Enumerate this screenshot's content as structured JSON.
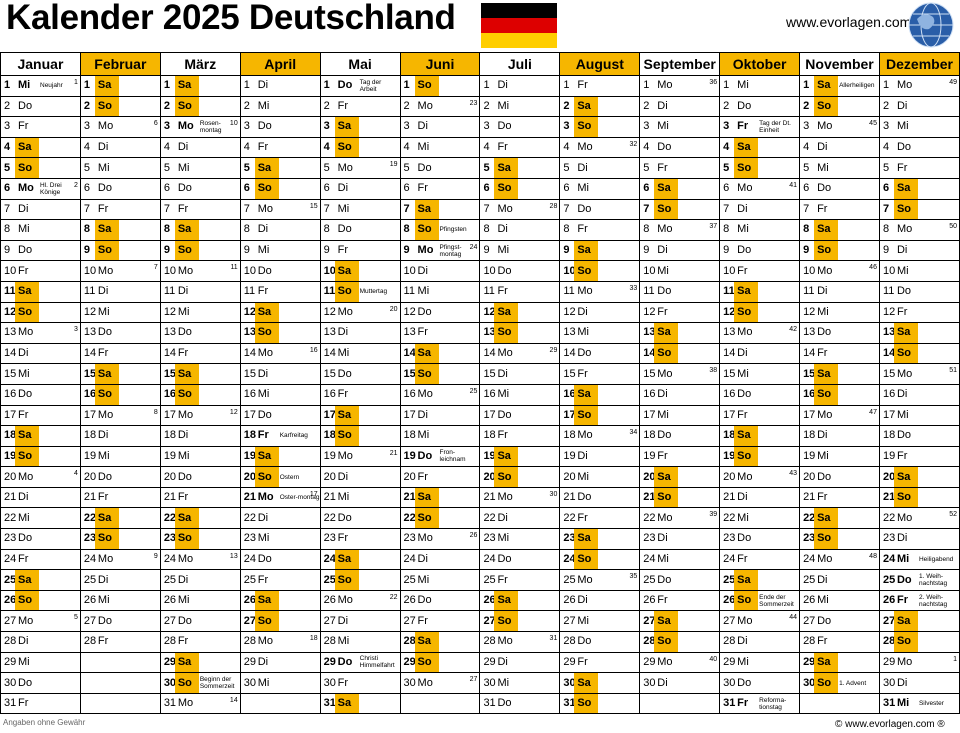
{
  "title": "Kalender 2025 Deutschland",
  "site": "www.evorlagen.com",
  "footer_left": "Angaben ohne Gewähr",
  "footer_right": "© www.evorlagen.com ®",
  "accent": "#f6b600",
  "flag_colors": [
    "#000000",
    "#dd0000",
    "#ffce00"
  ],
  "months": [
    {
      "name": "Januar",
      "hl": false
    },
    {
      "name": "Februar",
      "hl": true
    },
    {
      "name": "März",
      "hl": false
    },
    {
      "name": "April",
      "hl": true
    },
    {
      "name": "Mai",
      "hl": false
    },
    {
      "name": "Juni",
      "hl": true
    },
    {
      "name": "Juli",
      "hl": false
    },
    {
      "name": "August",
      "hl": true
    },
    {
      "name": "September",
      "hl": false
    },
    {
      "name": "Oktober",
      "hl": true
    },
    {
      "name": "November",
      "hl": false
    },
    {
      "name": "Dezember",
      "hl": true
    }
  ],
  "cells": [
    [
      "1|Mi|Neujahr|1",
      "1|Sa",
      "1|Sa",
      "1|Di",
      "1|Do|Tag der Arbeit",
      "1|So",
      "1|Di",
      "1|Fr",
      "1|Mo||36",
      "1|Mi",
      "1|Sa|Allerheiligen",
      "1|Mo||49"
    ],
    [
      "2|Do",
      "2|So",
      "2|So",
      "2|Mi",
      "2|Fr",
      "2|Mo||23",
      "2|Mi",
      "2|Sa",
      "2|Di",
      "2|Do",
      "2|So",
      "2|Di"
    ],
    [
      "3|Fr",
      "3|Mo||6",
      "3|Mo|Rosen-montag|10",
      "3|Do",
      "3|Sa",
      "3|Di",
      "3|Do",
      "3|So",
      "3|Mi",
      "3|Fr|Tag der Dt. Einheit",
      "3|Mo||45",
      "3|Mi"
    ],
    [
      "4|Sa",
      "4|Di",
      "4|Di",
      "4|Fr",
      "4|So",
      "4|Mi",
      "4|Fr",
      "4|Mo||32",
      "4|Do",
      "4|Sa",
      "4|Di",
      "4|Do"
    ],
    [
      "5|So",
      "5|Mi",
      "5|Mi",
      "5|Sa",
      "5|Mo||19",
      "5|Do",
      "5|Sa",
      "5|Di",
      "5|Fr",
      "5|So",
      "5|Mi",
      "5|Fr"
    ],
    [
      "6|Mo|Hl. Drei Könige|2",
      "6|Do",
      "6|Do",
      "6|So",
      "6|Di",
      "6|Fr",
      "6|So",
      "6|Mi",
      "6|Sa",
      "6|Mo||41",
      "6|Do",
      "6|Sa"
    ],
    [
      "7|Di",
      "7|Fr",
      "7|Fr",
      "7|Mo||15",
      "7|Mi",
      "7|Sa",
      "7|Mo||28",
      "7|Do",
      "7|So",
      "7|Di",
      "7|Fr",
      "7|So"
    ],
    [
      "8|Mi",
      "8|Sa",
      "8|Sa",
      "8|Di",
      "8|Do",
      "8|So|Pfingsten",
      "8|Di",
      "8|Fr",
      "8|Mo||37",
      "8|Mi",
      "8|Sa",
      "8|Mo||50"
    ],
    [
      "9|Do",
      "9|So",
      "9|So",
      "9|Mi",
      "9|Fr",
      "9|Mo|Pfingst-montag|24",
      "9|Mi",
      "9|Sa",
      "9|Di",
      "9|Do",
      "9|So",
      "9|Di"
    ],
    [
      "10|Fr",
      "10|Mo||7",
      "10|Mo||11",
      "10|Do",
      "10|Sa",
      "10|Di",
      "10|Do",
      "10|So",
      "10|Mi",
      "10|Fr",
      "10|Mo||46",
      "10|Mi"
    ],
    [
      "11|Sa",
      "11|Di",
      "11|Di",
      "11|Fr",
      "11|So|Muttertag",
      "11|Mi",
      "11|Fr",
      "11|Mo||33",
      "11|Do",
      "11|Sa",
      "11|Di",
      "11|Do"
    ],
    [
      "12|So",
      "12|Mi",
      "12|Mi",
      "12|Sa",
      "12|Mo||20",
      "12|Do",
      "12|Sa",
      "12|Di",
      "12|Fr",
      "12|So",
      "12|Mi",
      "12|Fr"
    ],
    [
      "13|Mo||3",
      "13|Do",
      "13|Do",
      "13|So",
      "13|Di",
      "13|Fr",
      "13|So",
      "13|Mi",
      "13|Sa",
      "13|Mo||42",
      "13|Do",
      "13|Sa"
    ],
    [
      "14|Di",
      "14|Fr",
      "14|Fr",
      "14|Mo||16",
      "14|Mi",
      "14|Sa",
      "14|Mo||29",
      "14|Do",
      "14|So",
      "14|Di",
      "14|Fr",
      "14|So"
    ],
    [
      "15|Mi",
      "15|Sa",
      "15|Sa",
      "15|Di",
      "15|Do",
      "15|So",
      "15|Di",
      "15|Fr",
      "15|Mo||38",
      "15|Mi",
      "15|Sa",
      "15|Mo||51"
    ],
    [
      "16|Do",
      "16|So",
      "16|So",
      "16|Mi",
      "16|Fr",
      "16|Mo||25",
      "16|Mi",
      "16|Sa",
      "16|Di",
      "16|Do",
      "16|So",
      "16|Di"
    ],
    [
      "17|Fr",
      "17|Mo||8",
      "17|Mo||12",
      "17|Do",
      "17|Sa",
      "17|Di",
      "17|Do",
      "17|So",
      "17|Mi",
      "17|Fr",
      "17|Mo||47",
      "17|Mi"
    ],
    [
      "18|Sa",
      "18|Di",
      "18|Di",
      "18|Fr|Karfreitag",
      "18|So",
      "18|Mi",
      "18|Fr",
      "18|Mo||34",
      "18|Do",
      "18|Sa",
      "18|Di",
      "18|Do"
    ],
    [
      "19|So",
      "19|Mi",
      "19|Mi",
      "19|Sa",
      "19|Mo||21",
      "19|Do|Fron-leichnam",
      "19|Sa",
      "19|Di",
      "19|Fr",
      "19|So",
      "19|Mi",
      "19|Fr"
    ],
    [
      "20|Mo||4",
      "20|Do",
      "20|Do",
      "20|So|Ostern",
      "20|Di",
      "20|Fr",
      "20|So",
      "20|Mi",
      "20|Sa",
      "20|Mo||43",
      "20|Do",
      "20|Sa"
    ],
    [
      "21|Di",
      "21|Fr",
      "21|Fr",
      "21|Mo|Oster-montag|17",
      "21|Mi",
      "21|Sa",
      "21|Mo||30",
      "21|Do",
      "21|So",
      "21|Di",
      "21|Fr",
      "21|So"
    ],
    [
      "22|Mi",
      "22|Sa",
      "22|Sa",
      "22|Di",
      "22|Do",
      "22|So",
      "22|Di",
      "22|Fr",
      "22|Mo||39",
      "22|Mi",
      "22|Sa",
      "22|Mo||52"
    ],
    [
      "23|Do",
      "23|So",
      "23|So",
      "23|Mi",
      "23|Fr",
      "23|Mo||26",
      "23|Mi",
      "23|Sa",
      "23|Di",
      "23|Do",
      "23|So",
      "23|Di"
    ],
    [
      "24|Fr",
      "24|Mo||9",
      "24|Mo||13",
      "24|Do",
      "24|Sa",
      "24|Di",
      "24|Do",
      "24|So",
      "24|Mi",
      "24|Fr",
      "24|Mo||48",
      "24|Mi|Heiligabend"
    ],
    [
      "25|Sa",
      "25|Di",
      "25|Di",
      "25|Fr",
      "25|So",
      "25|Mi",
      "25|Fr",
      "25|Mo||35",
      "25|Do",
      "25|Sa",
      "25|Di",
      "25|Do|1. Weih-nachtstag"
    ],
    [
      "26|So",
      "26|Mi",
      "26|Mi",
      "26|Sa",
      "26|Mo||22",
      "26|Do",
      "26|Sa",
      "26|Di",
      "26|Fr",
      "26|So|Ende der Sommerzeit",
      "26|Mi",
      "26|Fr|2. Weih-nachtstag"
    ],
    [
      "27|Mo||5",
      "27|Do",
      "27|Do",
      "27|So",
      "27|Di",
      "27|Fr",
      "27|So",
      "27|Mi",
      "27|Sa",
      "27|Mo||44",
      "27|Do",
      "27|Sa"
    ],
    [
      "28|Di",
      "28|Fr",
      "28|Fr",
      "28|Mo||18",
      "28|Mi",
      "28|Sa",
      "28|Mo||31",
      "28|Do",
      "28|So",
      "28|Di",
      "28|Fr",
      "28|So"
    ],
    [
      "29|Mi",
      "",
      "29|Sa",
      "29|Di",
      "29|Do|Christi Himmelfahrt",
      "29|So",
      "29|Di",
      "29|Fr",
      "29|Mo||40",
      "29|Mi",
      "29|Sa",
      "29|Mo||1"
    ],
    [
      "30|Do",
      "",
      "30|So|Beginn der Sommerzeit",
      "30|Mi",
      "30|Fr",
      "30|Mo||27",
      "30|Mi",
      "30|Sa",
      "30|Di",
      "30|Do",
      "30|So|1. Advent",
      "30|Di"
    ],
    [
      "31|Fr",
      "",
      "31|Mo||14",
      "",
      "31|Sa",
      "",
      "31|Do",
      "31|So",
      "",
      "31|Fr|Reforma-tionstag",
      "",
      "31|Mi|Silvester"
    ]
  ]
}
